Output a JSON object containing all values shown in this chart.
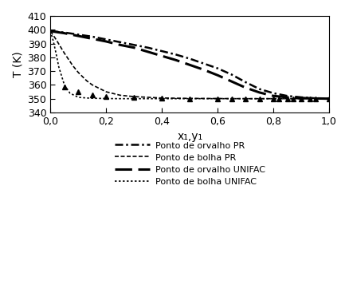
{
  "xlabel": "x₁,y₁",
  "ylabel": "T (K)",
  "xlim": [
    0.0,
    1.0
  ],
  "ylim": [
    340,
    410
  ],
  "yticks": [
    340,
    350,
    360,
    370,
    380,
    390,
    400,
    410
  ],
  "xticks": [
    0.0,
    0.2,
    0.4,
    0.6,
    0.8,
    1.0
  ],
  "xtick_labels": [
    "0,0",
    "0,2",
    "0,4",
    "0,6",
    "0,8",
    "1,0"
  ],
  "ytick_labels": [
    "340",
    "350",
    "360",
    "370",
    "380",
    "390",
    "400",
    "410"
  ],
  "dew_pr_x": [
    0.0,
    0.05,
    0.1,
    0.15,
    0.2,
    0.25,
    0.3,
    0.35,
    0.4,
    0.45,
    0.5,
    0.55,
    0.6,
    0.65,
    0.7,
    0.75,
    0.8,
    0.85,
    0.9,
    0.95,
    1.0
  ],
  "dew_pr_y": [
    399,
    398,
    396.5,
    395,
    393,
    391,
    389,
    387,
    384.5,
    382,
    379,
    375.5,
    372,
    367.5,
    362,
    357,
    354,
    352,
    351,
    350.3,
    350
  ],
  "bub_pr_x": [
    0.0,
    0.02,
    0.05,
    0.08,
    0.1,
    0.13,
    0.15,
    0.2,
    0.25,
    0.3,
    0.4,
    0.5,
    0.6,
    0.7,
    0.8,
    0.9,
    1.0
  ],
  "bub_pr_y": [
    399,
    393,
    383,
    374,
    369,
    363,
    360,
    355,
    352.5,
    351.5,
    350.5,
    350.2,
    350.1,
    350.0,
    350.0,
    350.0,
    350
  ],
  "dew_unifac_x": [
    0.0,
    0.05,
    0.1,
    0.15,
    0.2,
    0.25,
    0.3,
    0.35,
    0.4,
    0.45,
    0.5,
    0.55,
    0.6,
    0.65,
    0.7,
    0.75,
    0.8,
    0.85,
    0.9,
    0.95,
    1.0
  ],
  "dew_unifac_y": [
    399,
    397.5,
    395.5,
    393.5,
    391.5,
    389,
    387,
    384,
    381,
    378,
    374.5,
    371,
    367,
    362.5,
    358,
    354.5,
    352,
    351,
    350.5,
    350.2,
    350
  ],
  "bub_unifac_x": [
    0.0,
    0.01,
    0.02,
    0.03,
    0.05,
    0.07,
    0.1,
    0.13,
    0.15,
    0.2,
    0.25,
    0.3,
    0.4,
    0.5,
    0.6,
    0.7,
    0.8,
    0.9,
    1.0
  ],
  "bub_unifac_y": [
    399,
    392,
    383,
    373,
    360,
    354,
    351,
    350.5,
    350.3,
    350.1,
    350.0,
    350.0,
    350.0,
    350.0,
    350.0,
    350.0,
    350.0,
    350.0,
    350
  ],
  "exp_x": [
    0.05,
    0.1,
    0.15,
    0.2,
    0.3,
    0.4,
    0.5,
    0.6,
    0.65,
    0.7,
    0.75,
    0.8,
    0.82,
    0.85,
    0.87,
    0.9,
    0.93,
    0.95,
    1.0
  ],
  "exp_y": [
    358.5,
    355.0,
    352.5,
    351.5,
    350.8,
    350.3,
    350.1,
    350.0,
    350.0,
    350.0,
    350.0,
    350.0,
    350.0,
    350.0,
    350.0,
    350.0,
    350.0,
    350.0,
    350.0
  ],
  "legend_entries": [
    "Ponto de orvalho PR",
    "Ponto de bolha PR",
    "Ponto de orvalho UNIFAC",
    "Ponto de bolha UNIFAC"
  ],
  "line_color": "#000000",
  "background_color": "#ffffff"
}
